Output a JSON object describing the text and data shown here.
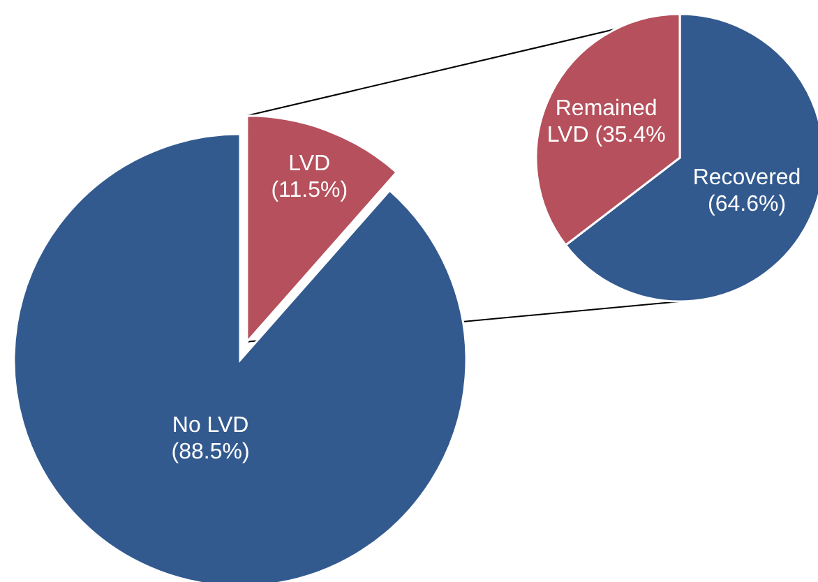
{
  "chart_data": [
    {
      "type": "pie",
      "categories": [
        "LVD",
        "No LVD"
      ],
      "values": [
        11.5,
        88.5
      ],
      "colors": [
        "#b5505c",
        "#335a8f"
      ],
      "value_labels": [
        "(11.5%)",
        "(88.5%)"
      ]
    },
    {
      "type": "pie",
      "categories": [
        "Recovered",
        "Remained LVD"
      ],
      "values": [
        64.6,
        35.4
      ],
      "colors": [
        "#335a8f",
        "#b5505c"
      ],
      "value_labels": [
        "(64.6%)",
        "(35.4%"
      ]
    }
  ]
}
